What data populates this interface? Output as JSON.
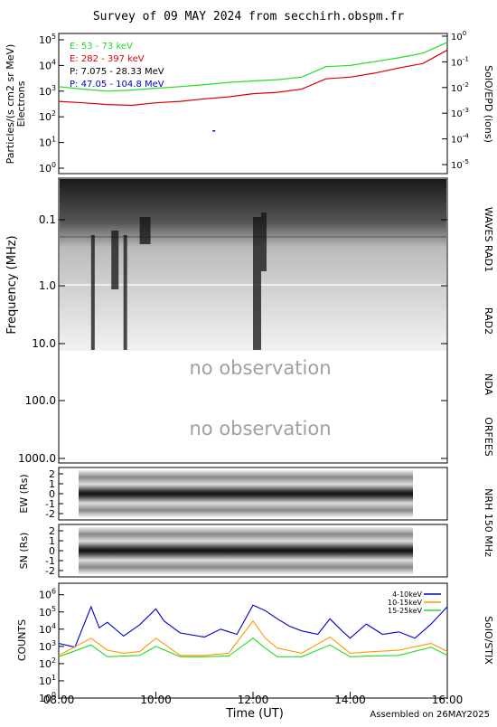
{
  "title": "Survey of 09 MAY 2024 from secchirh.obspm.fr",
  "footer": "Assembled on 26MAY2025",
  "xlabel": "Time (UT)",
  "xticks": [
    "08:00",
    "10:00",
    "12:00",
    "14:00",
    "16:00"
  ],
  "panels": {
    "epd": {
      "ylabel": "Particles/(s cm2 sr MeV)",
      "ylabel2": "Electrons",
      "right_label": "SolO/EPD (ions)",
      "left_ticks": [
        "10^5",
        "10^4",
        "10^3",
        "10^2",
        "10^1",
        "10^0"
      ],
      "right_ticks": [
        "10^0",
        "10^-1",
        "10^-2",
        "10^-3",
        "10^-4",
        "10^-5"
      ]
    },
    "radio": {
      "ylabel": "Frequency (MHz)",
      "yticks": [
        "0.1",
        "1.0",
        "10.0",
        "100.0",
        "1000.0"
      ],
      "no_obs_1": "no observation",
      "no_obs_2": "no observation",
      "right_labels": [
        "WAVES RAD1",
        "RAD2",
        "NDA",
        "ORFEES"
      ]
    },
    "nrh": {
      "ew_label": "EW (Rs)",
      "sn_label": "SN (Rs)",
      "yticks": [
        "2",
        "1",
        "0",
        "-1",
        "-2"
      ],
      "right_label": "NRH 150 MHz"
    },
    "stix": {
      "ylabel": "COUNTS",
      "right_label": "SolO/STIX",
      "yticks": [
        "10^6",
        "10^5",
        "10^4",
        "10^3",
        "10^2",
        "10^1",
        "10^0"
      ]
    }
  },
  "colors": {
    "green": "#22dd22",
    "red": "#dd0000",
    "blue": "#0000cc",
    "orange": "#ff9900",
    "black": "#000000"
  },
  "chart_data": [
    {
      "type": "line",
      "panel": "SolO/EPD",
      "log_y": true,
      "ylim": [
        1,
        100000
      ],
      "xlim": [
        "08:00",
        "16:00"
      ],
      "legend_position": "top-left",
      "series": [
        {
          "name": "E: 53 - 73 keV",
          "color": "#22dd22",
          "x": [
            "08:00",
            "08:30",
            "09:00",
            "09:30",
            "10:00",
            "10:30",
            "11:00",
            "11:30",
            "12:00",
            "12:30",
            "13:00",
            "13:30",
            "14:00",
            "14:30",
            "15:00",
            "15:30",
            "16:00"
          ],
          "values": [
            1500,
            1200,
            1000,
            1100,
            1300,
            1500,
            1800,
            2200,
            2500,
            2800,
            3500,
            9000,
            10000,
            14000,
            20000,
            30000,
            80000
          ]
        },
        {
          "name": "E: 282 - 397 keV",
          "color": "#dd0000",
          "x": [
            "08:00",
            "08:30",
            "09:00",
            "09:30",
            "10:00",
            "10:30",
            "11:00",
            "11:30",
            "12:00",
            "12:30",
            "13:00",
            "13:30",
            "14:00",
            "14:30",
            "15:00",
            "15:30",
            "16:00"
          ],
          "values": [
            400,
            350,
            300,
            280,
            350,
            400,
            500,
            600,
            800,
            900,
            1200,
            3000,
            3500,
            5000,
            8000,
            12000,
            40000
          ]
        },
        {
          "name": "P: 7.075 - 28.33 MeV",
          "color": "#000000",
          "x": [],
          "values": []
        },
        {
          "name": "P: 47.05 - 104.8 MeV",
          "color": "#0000cc",
          "x": [
            "11:10"
          ],
          "values": [
            30
          ]
        }
      ]
    },
    {
      "type": "line",
      "panel": "SolO/STIX",
      "log_y": true,
      "ylim": [
        1,
        1000000
      ],
      "xlim": [
        "08:00",
        "16:00"
      ],
      "legend_position": "top-right",
      "series": [
        {
          "name": "4-10keV",
          "color": "#0000cc",
          "x": [
            "08:00",
            "08:20",
            "08:40",
            "08:50",
            "09:00",
            "09:20",
            "09:40",
            "10:00",
            "10:10",
            "10:30",
            "11:00",
            "11:20",
            "11:40",
            "12:00",
            "12:15",
            "12:30",
            "12:45",
            "13:00",
            "13:20",
            "13:35",
            "13:50",
            "14:00",
            "14:20",
            "14:40",
            "15:00",
            "15:20",
            "15:40",
            "16:00"
          ],
          "values": [
            1500,
            900,
            200000,
            12000,
            25000,
            4000,
            18000,
            150000,
            30000,
            6000,
            3500,
            10000,
            5000,
            250000,
            120000,
            40000,
            15000,
            8000,
            5000,
            40000,
            8000,
            3000,
            20000,
            5000,
            7000,
            3000,
            20000,
            200000
          ]
        },
        {
          "name": "10-15keV",
          "color": "#ff9900",
          "x": [
            "08:00",
            "08:40",
            "09:00",
            "09:20",
            "09:40",
            "10:00",
            "10:30",
            "11:00",
            "11:30",
            "12:00",
            "12:15",
            "12:30",
            "13:00",
            "13:35",
            "14:00",
            "14:30",
            "15:00",
            "15:40",
            "16:00"
          ],
          "values": [
            300,
            3000,
            600,
            400,
            500,
            3000,
            300,
            300,
            400,
            30000,
            3000,
            800,
            400,
            3500,
            400,
            500,
            600,
            1500,
            500
          ]
        },
        {
          "name": "15-25keV",
          "color": "#22dd22",
          "x": [
            "08:00",
            "08:40",
            "09:00",
            "09:40",
            "10:00",
            "10:30",
            "11:00",
            "11:30",
            "12:00",
            "12:15",
            "12:30",
            "13:00",
            "13:35",
            "14:00",
            "14:30",
            "15:00",
            "15:40",
            "16:00"
          ],
          "values": [
            250,
            1200,
            250,
            300,
            1000,
            250,
            250,
            280,
            3000,
            800,
            250,
            250,
            1200,
            250,
            280,
            300,
            900,
            300
          ]
        }
      ]
    }
  ]
}
